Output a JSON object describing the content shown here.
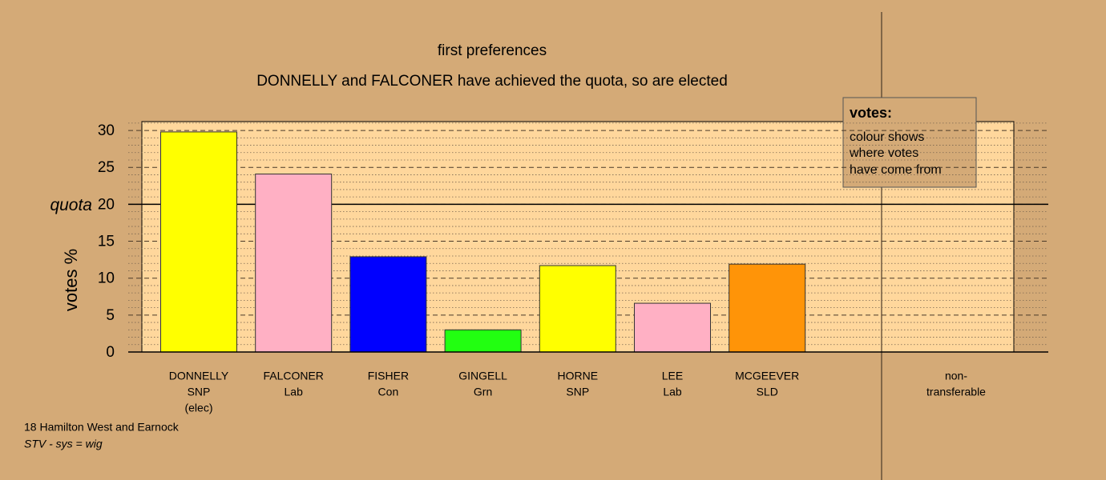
{
  "chart_data": {
    "type": "bar",
    "title": "first preferences",
    "subtitle": "DONNELLY and FALCONER have achieved the quota, so are elected",
    "y_label": "votes %",
    "categories": [
      [
        "DONNELLY",
        "SNP",
        "(elec)"
      ],
      [
        "FALCONER",
        "Lab"
      ],
      [
        "FISHER",
        "Con"
      ],
      [
        "GINGELL",
        "Grn"
      ],
      [
        "HORNE",
        "SNP"
      ],
      [
        "LEE",
        "Lab"
      ],
      [
        "MCGEEVER",
        "SLD"
      ],
      [
        "non-",
        "transferable"
      ]
    ],
    "values": [
      29.8,
      24.1,
      12.9,
      3.0,
      11.7,
      6.6,
      11.9,
      0
    ],
    "colors": [
      "#ffff00",
      "#ffb0c4",
      "#0000ff",
      "#22ff11",
      "#ffff00",
      "#ffb0c4",
      "#ff9408",
      null
    ],
    "ylim": [
      0,
      31.2
    ],
    "yticks": [
      0,
      5,
      10,
      15,
      20,
      25,
      30
    ],
    "minor_yticks": [
      1,
      2,
      3,
      4,
      6,
      7,
      8,
      9,
      11,
      12,
      13,
      14,
      16,
      17,
      18,
      19,
      21,
      22,
      23,
      24,
      26,
      27,
      28,
      29,
      31
    ],
    "quota": 20,
    "quota_label": "quota",
    "legend": {
      "title": "votes:",
      "lines": [
        "colour shows",
        "where votes",
        "have come from"
      ]
    },
    "footer": [
      "18 Hamilton West and Earnock",
      "STV - sys = wig"
    ]
  }
}
